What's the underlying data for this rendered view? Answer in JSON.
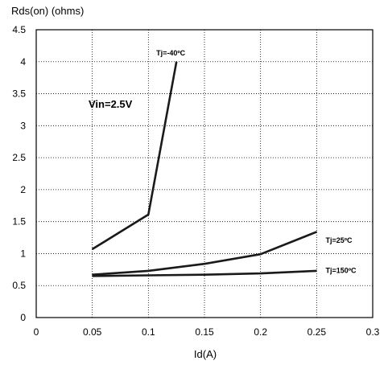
{
  "chart_data": {
    "type": "line",
    "title": "",
    "xlabel": "Id(A)",
    "ylabel": "Rds(on) (ohms)",
    "xlim": [
      0,
      0.3
    ],
    "ylim": [
      0,
      4.5
    ],
    "x_ticks": [
      "0",
      "0.05",
      "0.1",
      "0.15",
      "0.2",
      "0.25",
      "0.3"
    ],
    "y_ticks": [
      "0",
      "0.5",
      "1",
      "1.5",
      "2",
      "2.5",
      "3",
      "3.5",
      "4",
      "4.5"
    ],
    "x_tick_values": [
      0,
      0.05,
      0.1,
      0.15,
      0.2,
      0.25,
      0.3
    ],
    "y_tick_values": [
      0,
      0.5,
      1,
      1.5,
      2,
      2.5,
      3,
      3.5,
      4,
      4.5
    ],
    "grid": "dotted",
    "legend": "none",
    "annotation": "Vin=2.5V",
    "series": [
      {
        "name": "Tj=-40ºC",
        "x": [
          0.05,
          0.1,
          0.125
        ],
        "y": [
          1.07,
          1.61,
          4.0
        ]
      },
      {
        "name": "Tj=25ºC",
        "x": [
          0.05,
          0.1,
          0.15,
          0.2,
          0.25
        ],
        "y": [
          0.67,
          0.73,
          0.84,
          0.99,
          1.34
        ]
      },
      {
        "name": "Tj=150ºC",
        "x": [
          0.05,
          0.1,
          0.15,
          0.2,
          0.25
        ],
        "y": [
          0.65,
          0.66,
          0.67,
          0.69,
          0.73
        ]
      }
    ]
  }
}
